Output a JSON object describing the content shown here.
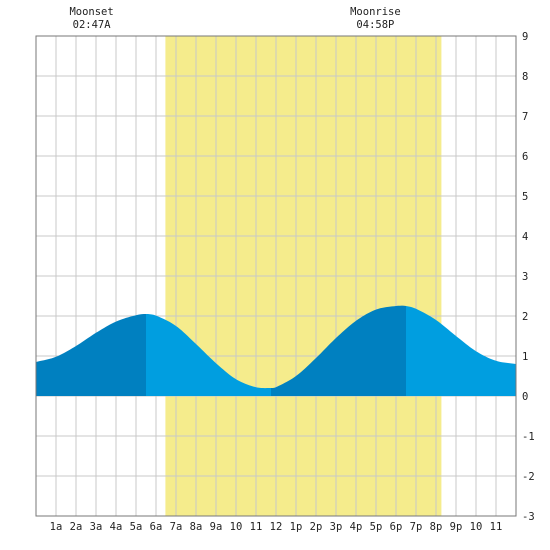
{
  "chart_data": {
    "type": "area",
    "title": "",
    "xlabel": "",
    "ylabel": "",
    "x_unit": "hour",
    "xlim": [
      0,
      24
    ],
    "ylim": [
      -3,
      9
    ],
    "grid": true,
    "y_ticks": [
      -3,
      -2,
      -1,
      0,
      1,
      2,
      3,
      4,
      5,
      6,
      7,
      8,
      9
    ],
    "x_ticks": [
      {
        "hour": 1,
        "label": "1a"
      },
      {
        "hour": 2,
        "label": "2a"
      },
      {
        "hour": 3,
        "label": "3a"
      },
      {
        "hour": 4,
        "label": "4a"
      },
      {
        "hour": 5,
        "label": "5a"
      },
      {
        "hour": 6,
        "label": "6a"
      },
      {
        "hour": 7,
        "label": "7a"
      },
      {
        "hour": 8,
        "label": "8a"
      },
      {
        "hour": 9,
        "label": "9a"
      },
      {
        "hour": 10,
        "label": "10"
      },
      {
        "hour": 11,
        "label": "11"
      },
      {
        "hour": 12,
        "label": "12"
      },
      {
        "hour": 13,
        "label": "1p"
      },
      {
        "hour": 14,
        "label": "2p"
      },
      {
        "hour": 15,
        "label": "3p"
      },
      {
        "hour": 16,
        "label": "4p"
      },
      {
        "hour": 17,
        "label": "5p"
      },
      {
        "hour": 18,
        "label": "6p"
      },
      {
        "hour": 19,
        "label": "7p"
      },
      {
        "hour": 20,
        "label": "8p"
      },
      {
        "hour": 21,
        "label": "9p"
      },
      {
        "hour": 22,
        "label": "10"
      },
      {
        "hour": 23,
        "label": "11"
      }
    ],
    "daylight": {
      "start_hour": 6.47,
      "end_hour": 20.27,
      "color": "#f5ec8c"
    },
    "tide_extremes": [
      {
        "hour": 5.5,
        "height": 2.05,
        "type": "high"
      },
      {
        "hour": 11.75,
        "height": 0.2,
        "type": "low"
      },
      {
        "hour": 18.5,
        "height": 2.25,
        "type": "high"
      }
    ],
    "tide_curve": [
      {
        "hour": 0,
        "height": 0.85
      },
      {
        "hour": 1,
        "height": 0.98
      },
      {
        "hour": 2,
        "height": 1.25
      },
      {
        "hour": 3,
        "height": 1.58
      },
      {
        "hour": 4,
        "height": 1.86
      },
      {
        "hour": 5,
        "height": 2.02
      },
      {
        "hour": 5.5,
        "height": 2.05
      },
      {
        "hour": 6,
        "height": 2.01
      },
      {
        "hour": 7,
        "height": 1.75
      },
      {
        "hour": 8,
        "height": 1.3
      },
      {
        "hour": 9,
        "height": 0.82
      },
      {
        "hour": 10,
        "height": 0.42
      },
      {
        "hour": 11,
        "height": 0.22
      },
      {
        "hour": 11.75,
        "height": 0.2
      },
      {
        "hour": 12,
        "height": 0.22
      },
      {
        "hour": 13,
        "height": 0.5
      },
      {
        "hour": 14,
        "height": 0.95
      },
      {
        "hour": 15,
        "height": 1.45
      },
      {
        "hour": 16,
        "height": 1.88
      },
      {
        "hour": 17,
        "height": 2.16
      },
      {
        "hour": 18,
        "height": 2.25
      },
      {
        "hour": 18.5,
        "height": 2.25
      },
      {
        "hour": 19,
        "height": 2.18
      },
      {
        "hour": 20,
        "height": 1.9
      },
      {
        "hour": 21,
        "height": 1.5
      },
      {
        "hour": 22,
        "height": 1.12
      },
      {
        "hour": 23,
        "height": 0.88
      },
      {
        "hour": 24,
        "height": 0.8
      }
    ],
    "colors": {
      "rising": "#0080c0",
      "falling": "#009ee0",
      "grid": "#c8c8c8",
      "frame": "#777777"
    },
    "annotations": [
      {
        "label": "Moonset",
        "time": "02:47A",
        "hour": 2.78
      },
      {
        "label": "Moonrise",
        "time": "04:58P",
        "hour": 16.97
      }
    ]
  }
}
